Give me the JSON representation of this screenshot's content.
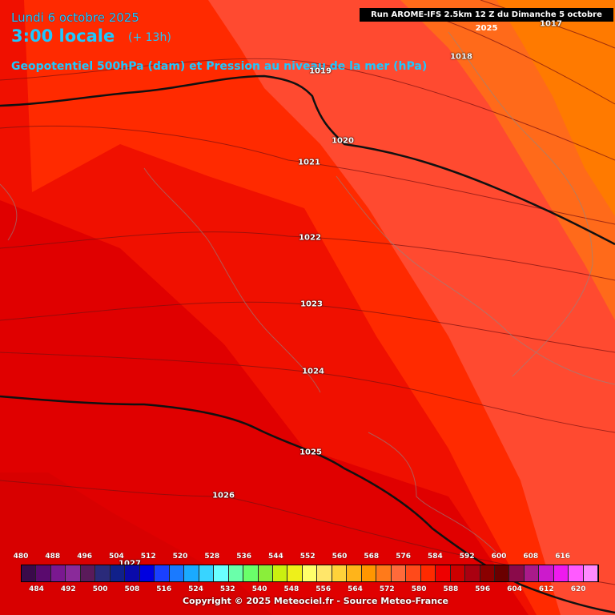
{
  "header": {
    "date": "Lundi 6 octobre 2025",
    "time": "3:00 locale",
    "step": "(+ 13h)",
    "parameter": "Geopotentiel 500hPa (dam) et Pression au niveau de la mer (hPa)",
    "run": "Run AROME-IFS 2.5km 12 Z du Dimanche 5 octobre 2025"
  },
  "isobar_labels": [
    "1017",
    "1018",
    "1019",
    "1020",
    "1021",
    "1022",
    "1023",
    "1024",
    "1025",
    "1026",
    "1027"
  ],
  "scale": {
    "top_labels": [
      "480",
      "488",
      "496",
      "504",
      "512",
      "520",
      "528",
      "536",
      "544",
      "552",
      "560",
      "568",
      "576",
      "584",
      "592",
      "600",
      "608",
      "616"
    ],
    "bottom_labels": [
      "484",
      "492",
      "500",
      "508",
      "516",
      "524",
      "532",
      "540",
      "548",
      "556",
      "564",
      "572",
      "580",
      "588",
      "596",
      "604",
      "612",
      "620"
    ],
    "colors": [
      "#3a0a4a",
      "#5a0a6e",
      "#7a1890",
      "#8a2a9a",
      "#5a1a5a",
      "#2a2a7a",
      "#10208a",
      "#0a0aaa",
      "#0000e0",
      "#1a40ff",
      "#1a7aff",
      "#1aaaff",
      "#38d4ff",
      "#6affff",
      "#6affaa",
      "#6aff6a",
      "#8aee3a",
      "#caf010",
      "#eef01a",
      "#ffff6a",
      "#ffe66a",
      "#ffd23a",
      "#ffb41a",
      "#ff9600",
      "#ff7a1a",
      "#ff6a3a",
      "#ff4a1a",
      "#ff2a00",
      "#ee0000",
      "#cc0000",
      "#aa0010",
      "#8a0000",
      "#6a0000",
      "#8a0a4a",
      "#aa1a8a",
      "#cc1acc",
      "#ee1aee",
      "#ff5aff",
      "#ff8aff"
    ]
  },
  "copyright": "Copyright © 2025 Meteociel.fr - Source Meteo-France",
  "colors": {
    "title": "#1ec8ff",
    "band_576": "#ff6a3a",
    "band_580": "#ff4a1a",
    "band_584": "#ff2a00",
    "band_588": "#ee0000",
    "band_592": "#cc0000",
    "band_572": "#ff7a1a"
  }
}
